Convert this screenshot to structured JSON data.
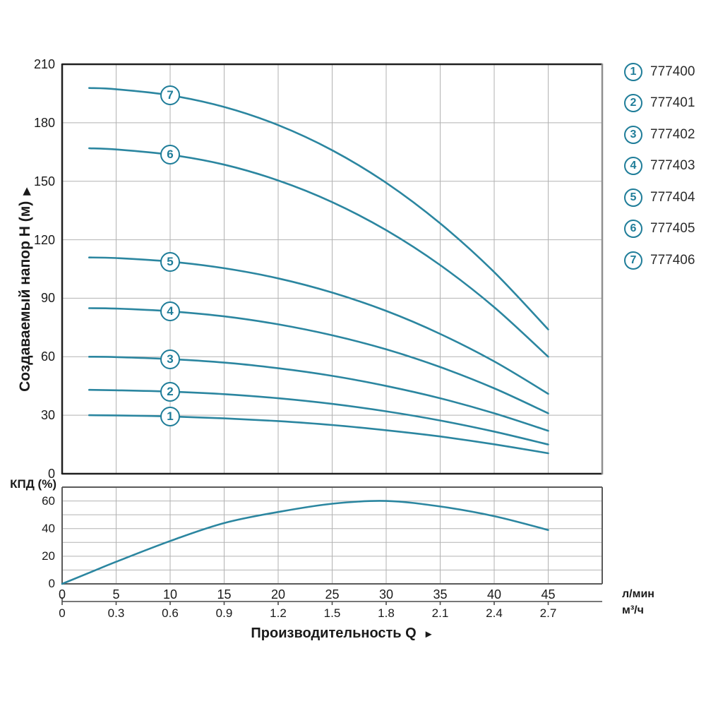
{
  "colors": {
    "curve": "#2b86a0",
    "marker_ring": "#1f7d99",
    "grid": "#b2b2b2",
    "border_dark": "#1f1f1f",
    "border_right": "#8f8f8f",
    "border_eff": "#5a5a5a",
    "axis_secondary": "#4a4a4a",
    "text": "#1a1a1a"
  },
  "x_axis": {
    "title": "Производительность Q",
    "title_arrow": "►",
    "unit_primary": "л/мин",
    "unit_secondary": "м³/ч"
  },
  "legend": {
    "items": [
      {
        "num": "1",
        "code": "777400"
      },
      {
        "num": "2",
        "code": "777401"
      },
      {
        "num": "3",
        "code": "777402"
      },
      {
        "num": "4",
        "code": "777403"
      },
      {
        "num": "5",
        "code": "777404"
      },
      {
        "num": "6",
        "code": "777405"
      },
      {
        "num": "7",
        "code": "777406"
      }
    ]
  },
  "chart_data": [
    {
      "type": "line",
      "title": "",
      "xlabel": "Производительность Q",
      "ylabel": "Создаваемый напор H (м)",
      "ylabel_arrow": "▶",
      "x_unit_primary": "л/мин",
      "x_unit_secondary": "м³/ч",
      "xlim": [
        0,
        50
      ],
      "ylim": [
        0,
        210
      ],
      "grid": true,
      "legend_position": "right-outside",
      "y_ticks": [
        210,
        180,
        150,
        120,
        90,
        60,
        30,
        0
      ],
      "x_ticks_lmin": [
        0,
        5,
        10,
        15,
        20,
        25,
        30,
        35,
        40,
        45
      ],
      "x_ticks_m3h": [
        "0",
        "0.3",
        "0.6",
        "0.9",
        "1.2",
        "1.5",
        "1.8",
        "2.1",
        "2.4",
        "2.7"
      ],
      "marker_x": 10,
      "series": [
        {
          "name": "1",
          "code": "777400",
          "x": [
            2.5,
            5,
            10,
            15,
            20,
            25,
            30,
            35,
            40,
            45
          ],
          "y": [
            30.0,
            29.9,
            29.4,
            28.4,
            27.0,
            25.0,
            22.3,
            19.1,
            15.1,
            10.5
          ]
        },
        {
          "name": "2",
          "code": "777401",
          "x": [
            2.5,
            5,
            10,
            15,
            20,
            25,
            30,
            35,
            40,
            45
          ],
          "y": [
            43.0,
            42.8,
            42.1,
            40.8,
            38.7,
            35.8,
            32.0,
            27.3,
            21.6,
            15.0
          ]
        },
        {
          "name": "3",
          "code": "777402",
          "x": [
            2.5,
            5,
            10,
            15,
            20,
            25,
            30,
            35,
            40,
            45
          ],
          "y": [
            60.0,
            59.8,
            58.8,
            57.0,
            54.1,
            50.2,
            45.0,
            38.7,
            31.0,
            22.0
          ]
        },
        {
          "name": "4",
          "code": "777403",
          "x": [
            2.5,
            5,
            10,
            15,
            20,
            25,
            30,
            35,
            40,
            45
          ],
          "y": [
            84.9,
            84.7,
            83.3,
            80.7,
            76.6,
            71.0,
            63.8,
            54.7,
            43.8,
            31.0
          ]
        },
        {
          "name": "5",
          "code": "777404",
          "x": [
            2.5,
            5,
            10,
            15,
            20,
            25,
            30,
            35,
            40,
            45
          ],
          "y": [
            110.9,
            110.6,
            108.8,
            105.4,
            100.2,
            92.9,
            83.5,
            71.7,
            57.6,
            41.0
          ]
        },
        {
          "name": "6",
          "code": "777405",
          "x": [
            2.5,
            5,
            10,
            15,
            20,
            25,
            30,
            35,
            40,
            45
          ],
          "y": [
            166.9,
            166.3,
            163.6,
            158.5,
            150.4,
            139.3,
            124.9,
            107.0,
            85.4,
            60.0
          ]
        },
        {
          "name": "7",
          "code": "777406",
          "x": [
            2.5,
            5,
            10,
            15,
            20,
            25,
            30,
            35,
            40,
            45
          ],
          "y": [
            197.8,
            197.2,
            194.1,
            188.1,
            178.8,
            165.9,
            149.2,
            128.4,
            103.4,
            74.0
          ]
        }
      ]
    },
    {
      "type": "line",
      "title": "",
      "xlabel": "",
      "ylabel": "КПД (%)",
      "xlim": [
        0,
        50
      ],
      "ylim": [
        0,
        70
      ],
      "grid": true,
      "y_ticks": [
        60,
        40,
        20,
        0
      ],
      "series": [
        {
          "name": "КПД",
          "x": [
            0,
            2.5,
            5,
            10,
            15,
            20,
            25,
            30,
            35,
            40,
            45
          ],
          "y": [
            0,
            8,
            16,
            31,
            44,
            52,
            58,
            60,
            56,
            49,
            39
          ]
        }
      ]
    }
  ]
}
